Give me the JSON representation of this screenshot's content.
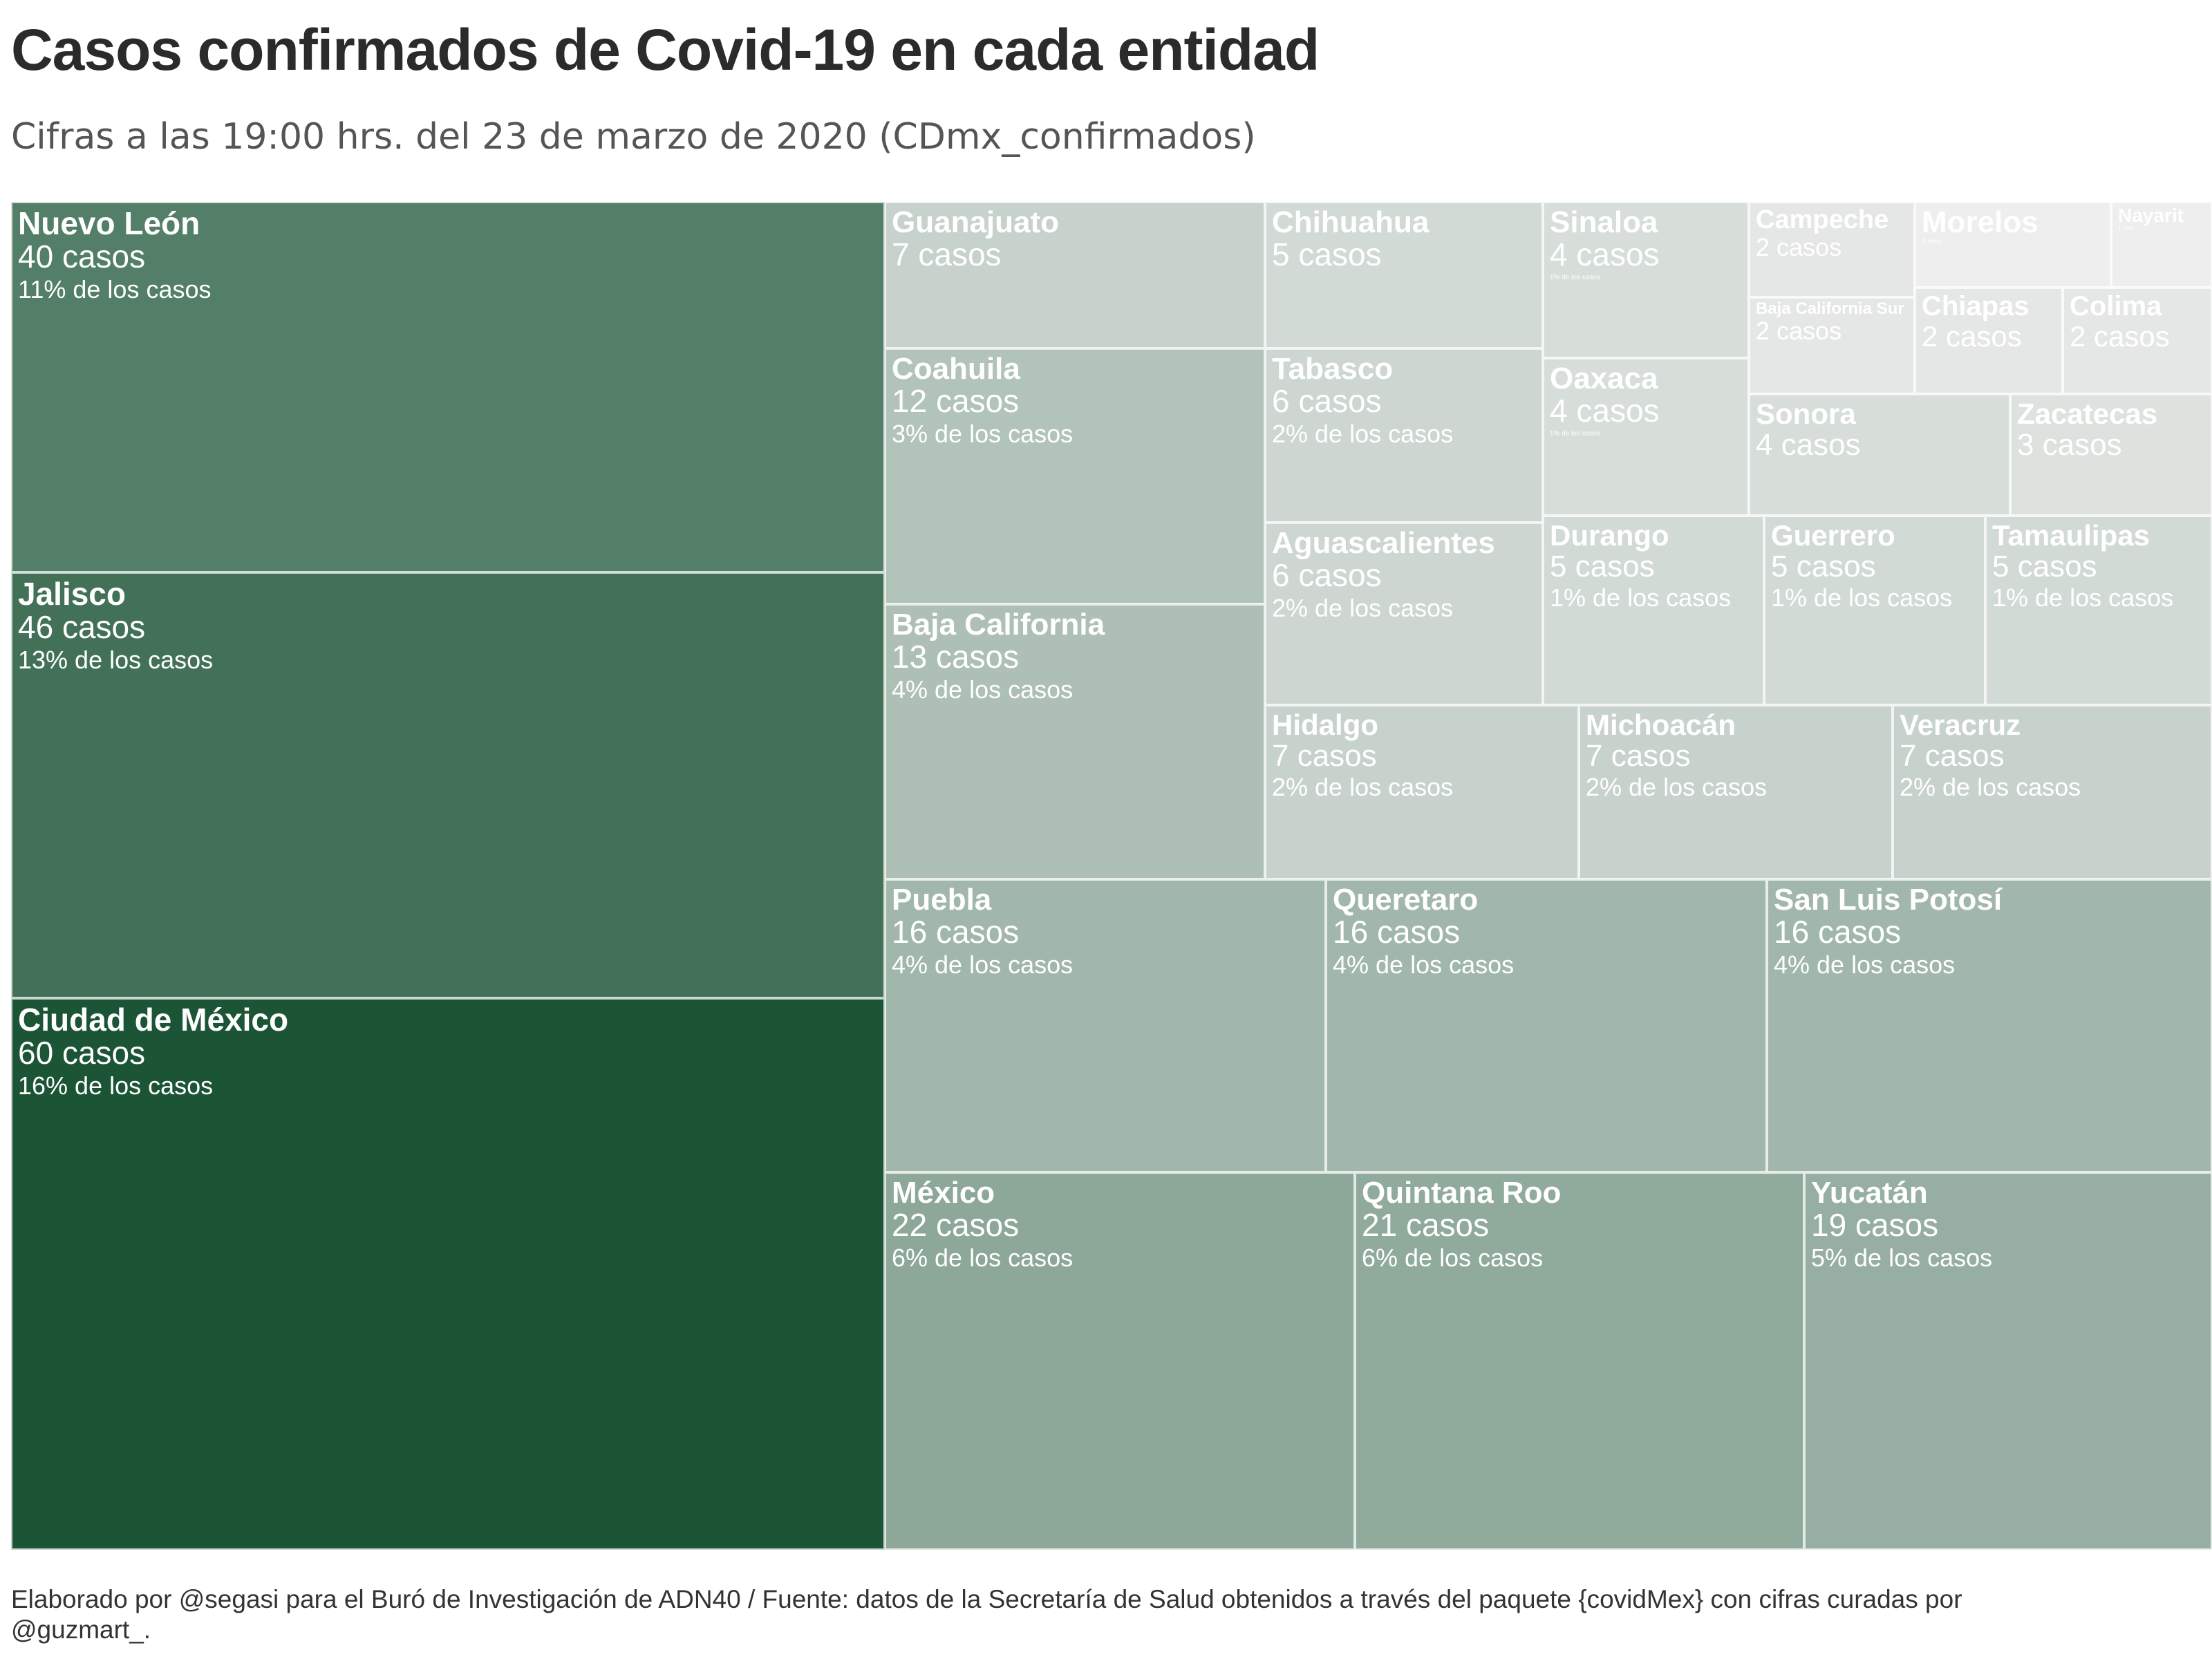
{
  "chart_data": {
    "type": "treemap",
    "title": "Casos confirmados de Covid-19 en cada entidad",
    "subtitle": "Cifras a las 19:00 hrs. del 23 de marzo de 2020 (CDmx_confirmados)",
    "caption": "Elaborado por @segasi  para el Buró de Investigación de ADN40 / Fuente: datos de la Secretaría de Salud obtenidos a través del paquete {covidMex} con cifras curadas por @guzmart_.",
    "color_scale": {
      "low": "#eeeeee",
      "high": "#1b5536",
      "min_value": 1,
      "max_value": 60
    },
    "entries": [
      {
        "name": "Nuevo León",
        "value": 40,
        "count_label": "40 casos",
        "pct_label": "11% de los casos"
      },
      {
        "name": "Jalisco",
        "value": 46,
        "count_label": "46 casos",
        "pct_label": "13% de los casos"
      },
      {
        "name": "Ciudad de México",
        "value": 60,
        "count_label": "60 casos",
        "pct_label": "16% de los casos"
      },
      {
        "name": "Guanajuato",
        "value": 7,
        "count_label": "7 casos",
        "pct_label": ""
      },
      {
        "name": "Coahuila",
        "value": 12,
        "count_label": "12 casos",
        "pct_label": "3% de los casos"
      },
      {
        "name": "Baja California",
        "value": 13,
        "count_label": "13 casos",
        "pct_label": "4% de los casos"
      },
      {
        "name": "Chihuahua",
        "value": 5,
        "count_label": "5 casos",
        "pct_label": ""
      },
      {
        "name": "Tabasco",
        "value": 6,
        "count_label": "6 casos",
        "pct_label": "2% de los casos"
      },
      {
        "name": "Aguascalientes",
        "value": 6,
        "count_label": "6 casos",
        "pct_label": "2% de los casos"
      },
      {
        "name": "Sinaloa",
        "value": 4,
        "count_label": "4 casos",
        "pct_label": "1% de los casos"
      },
      {
        "name": "Oaxaca",
        "value": 4,
        "count_label": "4 casos",
        "pct_label": "1% de los casos"
      },
      {
        "name": "Campeche",
        "value": 2,
        "count_label": "2 casos",
        "pct_label": ""
      },
      {
        "name": "Baja California Sur",
        "value": 2,
        "count_label": "2 casos",
        "pct_label": ""
      },
      {
        "name": "Morelos",
        "value": 1,
        "count_label": "1 caso",
        "pct_label": ""
      },
      {
        "name": "Nayarit",
        "value": 1,
        "count_label": "1 caso",
        "pct_label": ""
      },
      {
        "name": "Chiapas",
        "value": 2,
        "count_label": "2 casos",
        "pct_label": ""
      },
      {
        "name": "Colima",
        "value": 2,
        "count_label": "2 casos",
        "pct_label": ""
      },
      {
        "name": "Sonora",
        "value": 4,
        "count_label": "4 casos",
        "pct_label": ""
      },
      {
        "name": "Zacatecas",
        "value": 3,
        "count_label": "3 casos",
        "pct_label": ""
      },
      {
        "name": "Durango",
        "value": 5,
        "count_label": "5 casos",
        "pct_label": "1% de los casos"
      },
      {
        "name": "Guerrero",
        "value": 5,
        "count_label": "5 casos",
        "pct_label": "1% de los casos"
      },
      {
        "name": "Tamaulipas",
        "value": 5,
        "count_label": "5 casos",
        "pct_label": "1% de los casos"
      },
      {
        "name": "Hidalgo",
        "value": 7,
        "count_label": "7 casos",
        "pct_label": "2% de los casos"
      },
      {
        "name": "Michoacán",
        "value": 7,
        "count_label": "7 casos",
        "pct_label": "2% de los casos"
      },
      {
        "name": "Veracruz",
        "value": 7,
        "count_label": "7 casos",
        "pct_label": "2% de los casos"
      },
      {
        "name": "Puebla",
        "value": 16,
        "count_label": "16 casos",
        "pct_label": "4% de los casos"
      },
      {
        "name": "Queretaro",
        "value": 16,
        "count_label": "16 casos",
        "pct_label": "4% de los casos"
      },
      {
        "name": "San Luis Potosí",
        "value": 16,
        "count_label": "16 casos",
        "pct_label": "4% de los casos"
      },
      {
        "name": "México",
        "value": 22,
        "count_label": "22 casos",
        "pct_label": "6% de los casos"
      },
      {
        "name": "Quintana Roo",
        "value": 21,
        "count_label": "21 casos",
        "pct_label": "6% de los casos"
      },
      {
        "name": "Yucatán",
        "value": 19,
        "count_label": "19 casos",
        "pct_label": "5% de los casos"
      }
    ]
  }
}
